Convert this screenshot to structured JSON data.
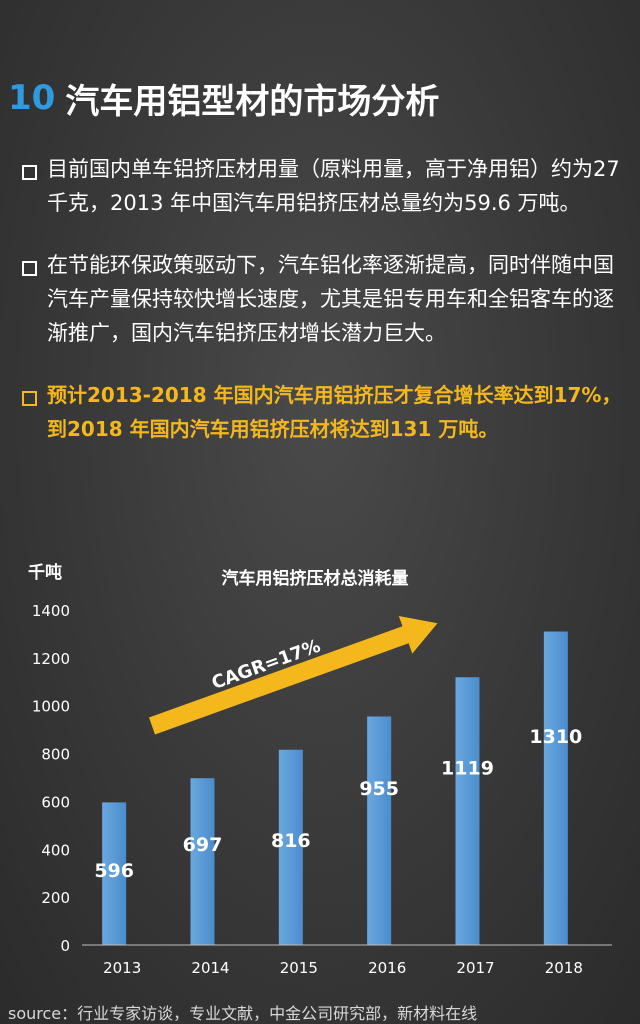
{
  "header": {
    "number": "10",
    "title": "汽车用铝型材的市场分析"
  },
  "bullets": [
    {
      "text": "目前国内单车铝挤压材用量（原料用量，高于净用铝）约为27 千克，2013 年中国汽车用铝挤压材总量约为59.6 万吨。",
      "highlight": false
    },
    {
      "text": "在节能环保政策驱动下，汽车铝化率逐渐提高，同时伴随中国汽车产量保持较快增长速度，尤其是铝专用车和全铝客车的逐渐推广，国内汽车铝挤压材增长潜力巨大。",
      "highlight": false
    },
    {
      "text": "预计2013-2018 年国内汽车用铝挤压才复合增长率达到17%，到2018 年国内汽车用铝挤压材将达到131 万吨。",
      "highlight": true
    }
  ],
  "chart_data": {
    "type": "bar",
    "title": "汽车用铝挤压材总消耗量",
    "ylabel": "千吨",
    "xlabel": "",
    "categories": [
      "2013",
      "2014",
      "2015",
      "2016",
      "2017",
      "2018"
    ],
    "values": [
      596,
      697,
      816,
      955,
      1119,
      1310
    ],
    "data_labels": [
      "596",
      "697",
      "816",
      "955",
      "1119",
      "1310"
    ],
    "ylim": [
      0,
      1400
    ],
    "yticks": [
      "0",
      "200",
      "400",
      "600",
      "800",
      "1000",
      "1200",
      "1400"
    ],
    "grid": false,
    "bar_color": "#5b9bd5",
    "arrow_color": "#f5b81c",
    "annotation": "CAGR=17%"
  },
  "source": "source：行业专家访谈，专业文献，中金公司研究部，新材料在线"
}
